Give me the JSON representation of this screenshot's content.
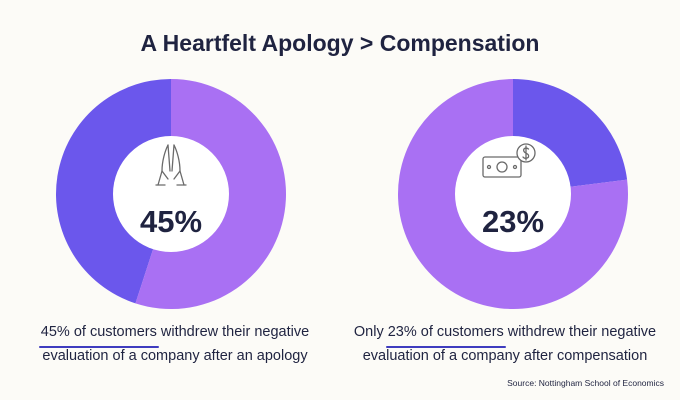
{
  "title": "A Heartfelt Apology > Compensation",
  "colors": {
    "accent": "#a970f3",
    "highlight": "#6b57ec",
    "center": "#ffffff",
    "text": "#1f2340"
  },
  "chart_data": [
    {
      "type": "pie",
      "variant": "donut",
      "center_label": "45%",
      "center_icon": "praying-hands-icon",
      "value": 45,
      "slices": [
        {
          "value": 45,
          "color": "#6b57ec"
        },
        {
          "value": 55,
          "color": "#a970f3"
        }
      ],
      "caption": {
        "highlight": "45% of customers",
        "rest_line1": " withdrew their negative",
        "line2": "evaluation  of a company after an apology"
      }
    },
    {
      "type": "pie",
      "variant": "donut",
      "center_label": "23%",
      "center_icon": "money-bill-icon",
      "value": 23,
      "slices": [
        {
          "value": 23,
          "color": "#6b57ec"
        },
        {
          "value": 77,
          "color": "#a970f3"
        }
      ],
      "caption": {
        "prefix": "Only ",
        "highlight": "23% of customers",
        "rest_line1": " withdrew their negative",
        "line2": "evaluation  of a company after compensation"
      }
    }
  ],
  "source": "Source: Nottingham School of Economics"
}
